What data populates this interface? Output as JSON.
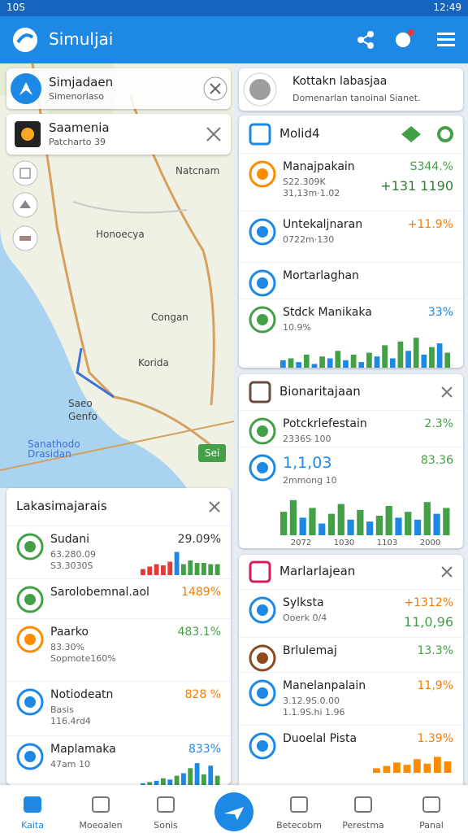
{
  "status_bar": {
    "left": "10S",
    "right": "12:49"
  },
  "app_bar": {
    "title": "Simuljai"
  },
  "map": {
    "search": {
      "title": "Simjadaen",
      "subtitle": "Simenorlaso"
    },
    "place": {
      "title": "Saamenia",
      "subtitle": "Patcharto 39"
    },
    "labels": [
      "Natcnam",
      "Honoecya",
      "Congan",
      "Korida",
      "Saeo",
      "Genfo",
      "Sanathodo Drasidan"
    ],
    "badge": "Sei"
  },
  "left_panel": {
    "title": "Lakasimajarais",
    "items": [
      {
        "name": "Sudani",
        "lines": [
          "63.280.09",
          "S3.3030S"
        ],
        "values": [
          "29.09%"
        ],
        "value_colors": [
          "#333333"
        ],
        "spark": {
          "ylim": [
            0,
            100
          ],
          "values": [
            25,
            35,
            45,
            40,
            55,
            95,
            45,
            60,
            50,
            50,
            45,
            45
          ],
          "colors": [
            "#e53935",
            "#e53935",
            "#e53935",
            "#e53935",
            "#e53935",
            "#1e88e5",
            "#43a047",
            "#43a047",
            "#43a047",
            "#43a047",
            "#43a047",
            "#43a047"
          ]
        }
      },
      {
        "name": "Sarolobemnal.aol",
        "lines": [],
        "values": [
          "1489%"
        ],
        "value_colors": [
          "#f57c00"
        ]
      },
      {
        "name": "Paarko",
        "lines": [
          "83.30%",
          "Sopmote160%"
        ],
        "values": [
          "483.1%"
        ],
        "value_colors": [
          "#43a047"
        ]
      },
      {
        "name": "Notiodeatn",
        "lines": [
          "Basis",
          "116.4rd4"
        ],
        "values": [
          "828 %"
        ],
        "value_colors": [
          "#f57c00"
        ]
      },
      {
        "name": "Maplamaka",
        "lines": [
          "47am 10"
        ],
        "values": [
          "833%"
        ],
        "value_colors": [
          "#1e88e5"
        ],
        "spark": {
          "ylim": [
            0,
            100
          ],
          "values": [
            10,
            15,
            20,
            30,
            25,
            40,
            50,
            70,
            90,
            45,
            80,
            40
          ],
          "colors": [
            "#1e88e5",
            "#43a047",
            "#1e88e5",
            "#43a047",
            "#1e88e5",
            "#43a047",
            "#1e88e5",
            "#43a047",
            "#1e88e5",
            "#43a047",
            "#1e88e5",
            "#43a047"
          ]
        }
      }
    ]
  },
  "info_card": {
    "title": "Kottakn labasjaa",
    "subtitle": "Domenarlan tanoinal Sianet."
  },
  "card_molid": {
    "title": "Molid4",
    "items": [
      {
        "name": "Manajpakain",
        "lines": [
          "S22.309K",
          "31,13m·1.02"
        ],
        "values": [
          "S344.%",
          "+131 1190"
        ],
        "value_colors": [
          "#43a047",
          "#2e7d32"
        ]
      },
      {
        "name": "Untekaljnaran",
        "lines": [
          "0722m·130"
        ],
        "values": [
          "+11.9%"
        ],
        "value_colors": [
          "#f57c00"
        ]
      },
      {
        "name": "Mortarlaghan",
        "lines": [],
        "values": [],
        "value_colors": []
      },
      {
        "name": "Stdck Manikaka",
        "lines": [
          "10.9%"
        ],
        "values": [
          "33%"
        ],
        "value_colors": [
          "#1e88e5"
        ],
        "spark": {
          "ylim": [
            0,
            100
          ],
          "values": [
            20,
            25,
            15,
            35,
            10,
            30,
            25,
            45,
            20,
            35,
            15,
            40,
            30,
            60,
            25,
            70,
            45,
            80,
            35,
            55,
            65,
            40
          ],
          "colors": [
            "#1e88e5",
            "#43a047",
            "#1e88e5",
            "#43a047",
            "#1e88e5",
            "#43a047",
            "#1e88e5",
            "#43a047",
            "#1e88e5",
            "#43a047",
            "#1e88e5",
            "#43a047",
            "#1e88e5",
            "#43a047",
            "#1e88e5",
            "#43a047",
            "#1e88e5",
            "#43a047",
            "#1e88e5",
            "#43a047",
            "#1e88e5",
            "#43a047"
          ]
        }
      }
    ]
  },
  "card_bion": {
    "title": "Bionaritajaan",
    "items": [
      {
        "name": "Potckrlefestain",
        "lines": [
          "2336S 100"
        ],
        "values": [
          "2.3%"
        ],
        "value_colors": [
          "#43a047"
        ]
      },
      {
        "name": "1,1,03",
        "lines": [
          "2mmong 10"
        ],
        "values": [
          "83.36"
        ],
        "value_colors": [
          "#43a047"
        ],
        "spark": {
          "ylim": [
            0,
            100
          ],
          "values": [
            60,
            90,
            45,
            70,
            30,
            55,
            80,
            40,
            65,
            35,
            50,
            75,
            45,
            60,
            40,
            85,
            55,
            70
          ],
          "colors": [
            "#43a047",
            "#43a047",
            "#1e88e5",
            "#43a047",
            "#1e88e5",
            "#43a047",
            "#43a047",
            "#1e88e5",
            "#43a047",
            "#1e88e5",
            "#43a047",
            "#43a047",
            "#1e88e5",
            "#43a047",
            "#1e88e5",
            "#43a047",
            "#1e88e5",
            "#43a047"
          ],
          "labels": [
            "2072",
            "1030",
            "1103",
            "2000"
          ]
        }
      }
    ]
  },
  "card_marl": {
    "title": "Marlarlajean",
    "items": [
      {
        "name": "Sylksta",
        "lines": [
          "Ooerk 0/4"
        ],
        "values": [
          "+1312%",
          "11,0,96"
        ],
        "value_colors": [
          "#f57c00",
          "#43a047"
        ]
      },
      {
        "name": "Brlulemaj",
        "lines": [],
        "values": [
          "13.3%"
        ],
        "value_colors": [
          "#43a047"
        ]
      },
      {
        "name": "Manelanpalain",
        "lines": [
          "3.12.9S.0.00",
          "1.1.9S.hi 1.96"
        ],
        "values": [
          "11,9%"
        ],
        "value_colors": [
          "#f57c00"
        ]
      },
      {
        "name": "Duoelal Pista",
        "lines": [],
        "values": [
          "1.39%"
        ],
        "value_colors": [
          "#f57c00"
        ],
        "spark": {
          "ylim": [
            0,
            100
          ],
          "values": [
            20,
            30,
            45,
            35,
            60,
            40,
            70,
            50
          ],
          "colors": [
            "#fb8c00",
            "#fb8c00",
            "#fb8c00",
            "#fb8c00",
            "#fb8c00",
            "#fb8c00",
            "#fb8c00",
            "#fb8c00"
          ]
        }
      }
    ]
  },
  "bottom_nav": [
    "Kaita",
    "Moeoalen",
    "Sonis",
    "Betecobm",
    "Perestma",
    "Panal"
  ]
}
